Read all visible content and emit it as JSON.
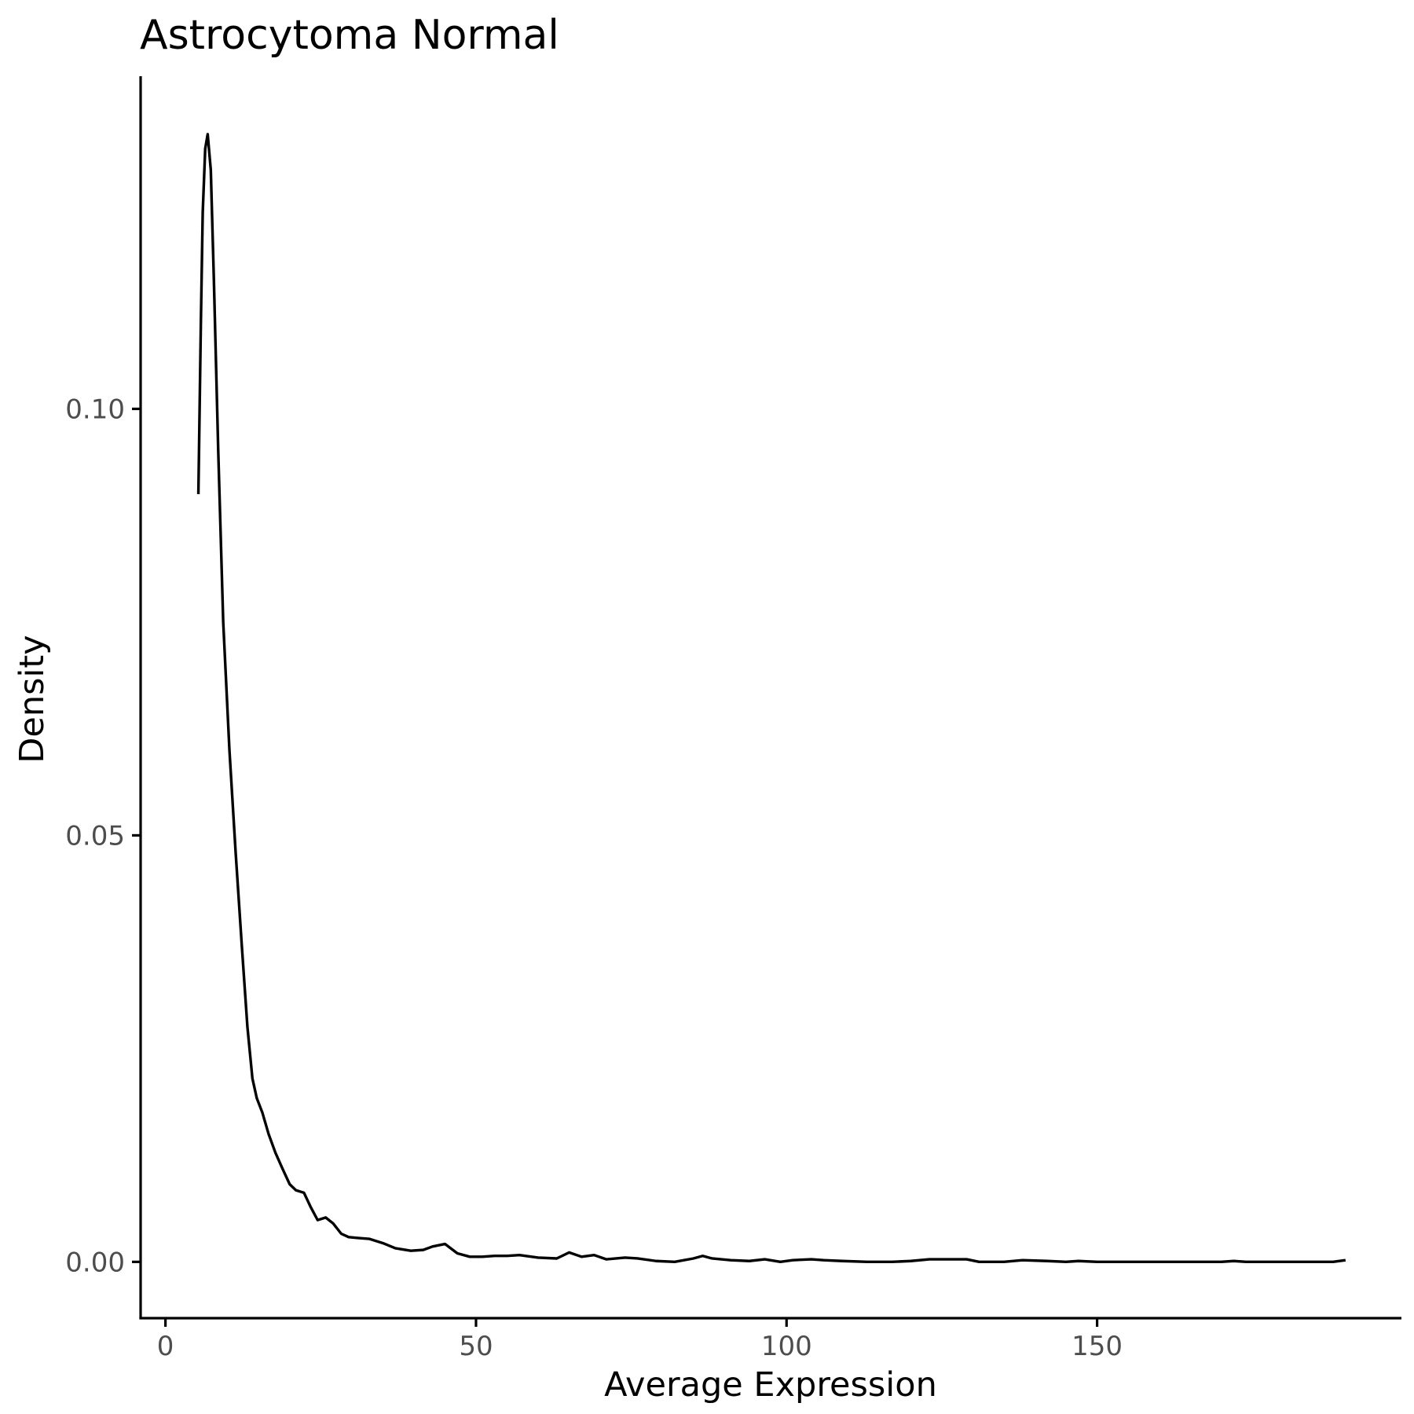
{
  "chart_data": {
    "type": "line",
    "title": "Astrocytoma Normal",
    "xlabel": "Average Expression",
    "ylabel": "Density",
    "xlim": [
      -4,
      199
    ],
    "ylim": [
      -0.0066,
      0.139
    ],
    "x_ticks": [
      0,
      50,
      100,
      150
    ],
    "x_tick_labels": [
      "0",
      "50",
      "100",
      "150"
    ],
    "y_ticks": [
      0.0,
      0.05,
      0.1
    ],
    "y_tick_labels": [
      "0.00",
      "0.05",
      "0.10"
    ],
    "grid": false,
    "legend": "none",
    "series": [
      {
        "color": "#000000",
        "x": [
          5.3,
          5.7,
          6.0,
          6.4,
          6.8,
          7.3,
          7.8,
          8.5,
          9.3,
          10.3,
          11.3,
          12.3,
          13.2,
          14.0,
          14.7,
          15.6,
          16.6,
          17.7,
          18.8,
          20.0,
          21.0,
          22.3,
          23.4,
          24.5,
          25.8,
          27.0,
          28.3,
          29.5,
          31.0,
          32.8,
          35.0,
          37.0,
          39.5,
          41.5,
          43.0,
          45.0,
          47.0,
          49.0,
          51.0,
          53.0,
          55.0,
          57.0,
          60.0,
          63.0,
          65.0,
          67.0,
          69.0,
          71.0,
          74.0,
          76.0,
          79.0,
          82.0,
          85.0,
          86.5,
          88.0,
          91.0,
          94.0,
          96.5,
          99.0,
          101.0,
          104.0,
          106.0,
          109.0,
          113.0,
          117.0,
          120.0,
          123.0,
          127.0,
          129.0,
          131.0,
          135.0,
          138.0,
          142.0,
          145.0,
          147.0,
          150.0,
          155.0,
          160.0,
          165.0,
          170.0,
          172.0,
          174.0,
          178.0,
          183.0,
          188.0,
          190.0
        ],
        "y": [
          0.09,
          0.11,
          0.123,
          0.1305,
          0.1322,
          0.128,
          0.115,
          0.095,
          0.075,
          0.06,
          0.048,
          0.037,
          0.0275,
          0.0215,
          0.0192,
          0.0175,
          0.015,
          0.0128,
          0.011,
          0.0091,
          0.0084,
          0.0081,
          0.0064,
          0.0049,
          0.0052,
          0.0045,
          0.0033,
          0.0029,
          0.0028,
          0.0027,
          0.0022,
          0.0016,
          0.0013,
          0.0014,
          0.0018,
          0.0021,
          0.001,
          0.0006,
          0.0006,
          0.0007,
          0.0007,
          0.0008,
          0.0005,
          0.0004,
          0.0011,
          0.0006,
          0.0008,
          0.0003,
          0.0005,
          0.0004,
          0.0001,
          0.0,
          0.0004,
          0.0007,
          0.0004,
          0.0002,
          0.0001,
          0.0003,
          0.0,
          0.0002,
          0.0003,
          0.0002,
          0.0001,
          0.0,
          0.0,
          0.0001,
          0.0003,
          0.0003,
          0.0003,
          0.0,
          0.0,
          0.0002,
          0.0001,
          0.0,
          0.0001,
          0.0,
          0.0,
          0.0,
          0.0,
          0.0,
          0.0001,
          0.0,
          0.0,
          0.0,
          0.0,
          0.0002
        ]
      }
    ]
  }
}
